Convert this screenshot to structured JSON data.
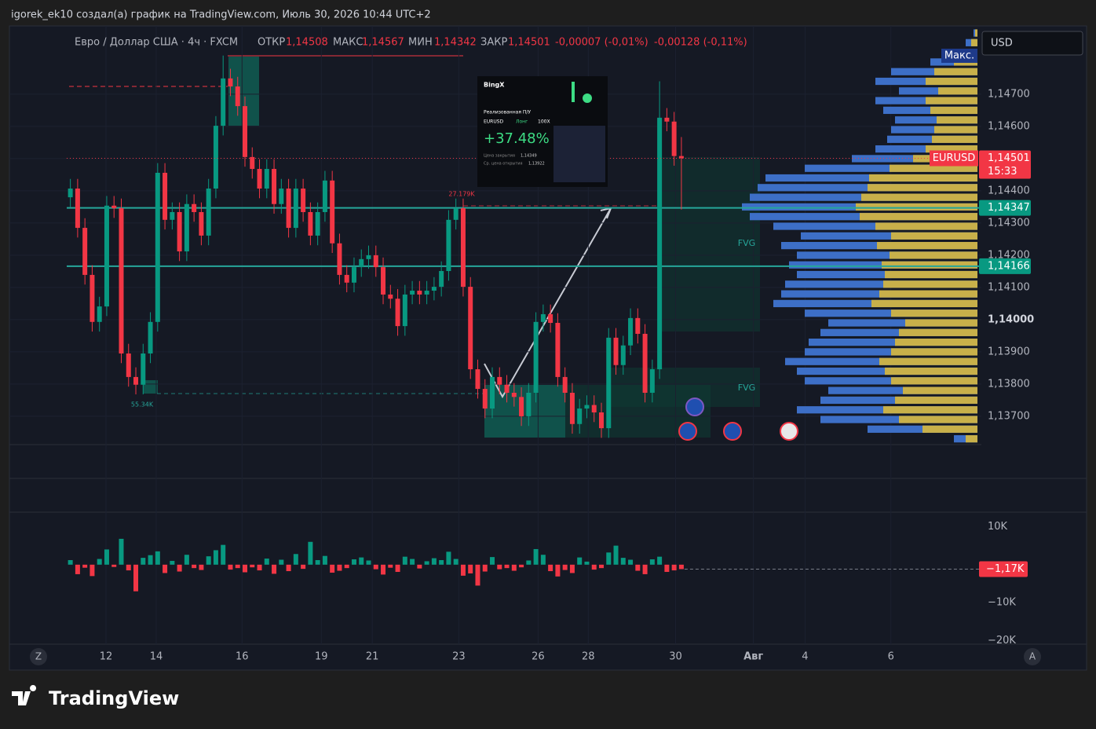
{
  "header": {
    "caption": "igorek_ek10 создал(а) график на TradingView.com, Июль 30, 2026 10:44 UTC+2",
    "currency": "USD",
    "logo": "TradingView",
    "scroll_left": "Z",
    "scroll_right": "A"
  },
  "legend": {
    "symbol": "Евро / Доллар США · 4ч · FXCM",
    "open_label": "ОТКР",
    "open": "1,14508",
    "high_label": "МАКС",
    "high": "1,14567",
    "low_label": "МИН",
    "low": "1,14342",
    "close_label": "ЗАКР",
    "close": "1,14501",
    "change": "-0,00007 (-0,01%)",
    "change2": "-0,00128 (-0,11%)"
  },
  "annotations": {
    "max_badge": "Макс.",
    "fvg": [
      "FVG",
      "FVG"
    ],
    "volume_top": "27.179K",
    "volume_bottom": "55.34K"
  },
  "ad": {
    "brand": "BingX",
    "title": "Реализованная П/У",
    "pair": "EURUSD",
    "side": "Лонг",
    "leverage": "100X",
    "pnl": "+37.48%",
    "close_label": "Цена закрытия",
    "close": "1,14349",
    "open_label": "Ср. цена открытия",
    "open": "1,13922"
  },
  "chart_data": [
    {
      "type": "candlestick",
      "name": "EURUSD",
      "up_color": "#089981",
      "down_color": "#f23645",
      "grid": true,
      "open": [
        1.1438,
        1.14407,
        1.14285,
        1.14139,
        1.13993,
        1.14041,
        1.14354,
        1.14346,
        1.13895,
        1.13822,
        1.13798,
        1.13895,
        1.13993,
        1.14456,
        1.1431,
        1.14334,
        1.14212,
        1.14359,
        1.14334,
        1.14261,
        1.14407,
        1.14602,
        1.14749,
        1.14724,
        1.14663,
        1.14505,
        1.14468,
        1.14407,
        1.14468,
        1.14359,
        1.14407,
        1.14285,
        1.14407,
        1.14334,
        1.14261,
        1.14334,
        1.14432,
        1.14237,
        1.14139,
        1.14115,
        1.14163,
        1.14188,
        1.142,
        1.14163,
        1.14078,
        1.14065,
        1.1398,
        1.14078,
        1.1409,
        1.14078,
        1.1409,
        1.14102,
        1.14151,
        1.1431,
        1.14346,
        1.14102,
        1.13846,
        1.13785,
        1.13724,
        1.13822,
        1.13798,
        1.13773,
        1.1376,
        1.137,
        1.13773,
        1.13993,
        1.14017,
        1.1399,
        1.13822,
        1.13773,
        1.13676,
        1.13724,
        1.13735,
        1.13712,
        1.13663,
        1.13944,
        1.13859,
        1.1392,
        1.14005,
        1.13956,
        1.13773,
        1.13846,
        1.14627,
        1.14615,
        1.14508
      ],
      "high": [
        1.14437,
        1.14437,
        1.14315,
        1.14169,
        1.14071,
        1.14384,
        1.14384,
        1.14376,
        1.13925,
        1.13852,
        1.13925,
        1.14023,
        1.14486,
        1.14486,
        1.14364,
        1.14364,
        1.14389,
        1.14389,
        1.14364,
        1.14437,
        1.14632,
        1.1482,
        1.14779,
        1.14754,
        1.14693,
        1.14535,
        1.14498,
        1.14498,
        1.14498,
        1.14437,
        1.14437,
        1.14437,
        1.14437,
        1.14364,
        1.14364,
        1.14462,
        1.14462,
        1.14267,
        1.14169,
        1.14193,
        1.14218,
        1.1423,
        1.1423,
        1.14193,
        1.14108,
        1.14095,
        1.14108,
        1.1412,
        1.1412,
        1.1412,
        1.14132,
        1.14181,
        1.1434,
        1.14376,
        1.14376,
        1.14132,
        1.13876,
        1.13815,
        1.13852,
        1.13852,
        1.13828,
        1.13803,
        1.1379,
        1.13803,
        1.14023,
        1.14047,
        1.14047,
        1.1402,
        1.13852,
        1.13803,
        1.13754,
        1.13765,
        1.13765,
        1.13742,
        1.13974,
        1.13974,
        1.1395,
        1.14035,
        1.14035,
        1.13986,
        1.13876,
        1.1474,
        1.14657,
        1.14645,
        1.14567
      ],
      "low": [
        1.1435,
        1.14255,
        1.14109,
        1.13963,
        1.13963,
        1.14011,
        1.14316,
        1.13865,
        1.13792,
        1.13768,
        1.13768,
        1.13865,
        1.13963,
        1.1428,
        1.1428,
        1.14182,
        1.14182,
        1.14304,
        1.14231,
        1.14231,
        1.14377,
        1.14572,
        1.14694,
        1.14633,
        1.14475,
        1.14438,
        1.14377,
        1.14377,
        1.14329,
        1.14329,
        1.14255,
        1.14255,
        1.14304,
        1.14231,
        1.14231,
        1.14304,
        1.14207,
        1.14109,
        1.14085,
        1.14085,
        1.14133,
        1.14158,
        1.14133,
        1.14048,
        1.14035,
        1.1395,
        1.1395,
        1.14048,
        1.14048,
        1.14048,
        1.1406,
        1.14072,
        1.14121,
        1.1428,
        1.14072,
        1.13816,
        1.13755,
        1.13694,
        1.13694,
        1.13768,
        1.13743,
        1.1373,
        1.1367,
        1.1367,
        1.13743,
        1.13963,
        1.1396,
        1.13792,
        1.13743,
        1.13646,
        1.13646,
        1.13694,
        1.13682,
        1.13633,
        1.13633,
        1.13829,
        1.13829,
        1.1389,
        1.13926,
        1.13743,
        1.13743,
        1.13816,
        1.14585,
        1.14478,
        1.14342
      ],
      "close": [
        1.14407,
        1.14285,
        1.14139,
        1.13993,
        1.14041,
        1.14354,
        1.14346,
        1.13895,
        1.13822,
        1.13798,
        1.13895,
        1.13993,
        1.14456,
        1.1431,
        1.14334,
        1.14212,
        1.14359,
        1.14334,
        1.14261,
        1.14407,
        1.14602,
        1.14749,
        1.14724,
        1.14663,
        1.14505,
        1.14468,
        1.14407,
        1.14468,
        1.14359,
        1.14407,
        1.14285,
        1.14407,
        1.14334,
        1.14261,
        1.14334,
        1.14432,
        1.14237,
        1.14139,
        1.14115,
        1.14163,
        1.14188,
        1.142,
        1.14163,
        1.14078,
        1.14065,
        1.1398,
        1.14078,
        1.1409,
        1.14078,
        1.1409,
        1.14102,
        1.14151,
        1.1431,
        1.14346,
        1.14102,
        1.13846,
        1.13785,
        1.13724,
        1.13822,
        1.13798,
        1.13773,
        1.1376,
        1.137,
        1.13773,
        1.13993,
        1.14017,
        1.1399,
        1.13822,
        1.13773,
        1.13676,
        1.13724,
        1.13735,
        1.13712,
        1.13663,
        1.13944,
        1.13859,
        1.1392,
        1.14005,
        1.13956,
        1.13773,
        1.13846,
        1.14627,
        1.14615,
        1.14508,
        1.14501
      ],
      "price_label": "1,14501",
      "timer": "15:33",
      "ylim": [
        1.13612,
        1.14912
      ],
      "yticks": [
        {
          "value": 1.137,
          "label": "1,13700"
        },
        {
          "value": 1.138,
          "label": "1,13800"
        },
        {
          "value": 1.139,
          "label": "1,13900"
        },
        {
          "value": 1.14,
          "label": "1,14000"
        },
        {
          "value": 1.141,
          "label": "1,14100"
        },
        {
          "value": 1.142,
          "label": "1,14200"
        },
        {
          "value": 1.143,
          "label": "1,14300"
        },
        {
          "value": 1.144,
          "label": "1,14400"
        },
        {
          "value": 1.145,
          "label": "1,14500"
        },
        {
          "value": 1.146,
          "label": "1,14600"
        },
        {
          "value": 1.147,
          "label": "1,14700"
        }
      ],
      "xlim": [
        -0.5,
        124.7
      ],
      "xticks": [
        {
          "value": 4.9,
          "label": "12"
        },
        {
          "value": 11.8,
          "label": "14"
        },
        {
          "value": 23.6,
          "label": "16"
        },
        {
          "value": 34.5,
          "label": "19"
        },
        {
          "value": 41.5,
          "label": "21"
        },
        {
          "value": 53.4,
          "label": "23"
        },
        {
          "value": 64.3,
          "label": "26"
        },
        {
          "value": 71.2,
          "label": "28"
        },
        {
          "value": 83.2,
          "label": "30"
        },
        {
          "value": 93.9,
          "label": "Авг"
        },
        {
          "value": 101,
          "label": "4"
        },
        {
          "value": 112.8,
          "label": "6"
        }
      ],
      "levels": [
        {
          "value": 1.14347,
          "label": "1,14347"
        },
        {
          "value": 1.14166,
          "label": "1,14166"
        }
      ],
      "volume_profile": {
        "color": "#3d6fc7",
        "buy_color": "#c8b04a",
        "prices": [
          1.1363,
          1.1366,
          1.1369,
          1.1372,
          1.1375,
          1.1378,
          1.1381,
          1.1384,
          1.1387,
          1.139,
          1.1393,
          1.1396,
          1.1399,
          1.1402,
          1.1405,
          1.1408,
          1.1411,
          1.1414,
          1.1417,
          1.142,
          1.1423,
          1.1426,
          1.1429,
          1.1432,
          1.1435,
          1.1438,
          1.1441,
          1.1444,
          1.1447,
          1.145,
          1.1453,
          1.1456,
          1.1459,
          1.1462,
          1.1465,
          1.1468,
          1.1471,
          1.1474,
          1.1477,
          1.148,
          1.1483,
          1.1486,
          1.1489
        ],
        "values": [
          30,
          140,
          200,
          230,
          200,
          190,
          220,
          230,
          245,
          220,
          215,
          200,
          190,
          220,
          260,
          250,
          245,
          230,
          240,
          230,
          250,
          225,
          260,
          290,
          300,
          290,
          280,
          270,
          220,
          160,
          130,
          115,
          110,
          105,
          120,
          130,
          100,
          130,
          110,
          60,
          30,
          15,
          5
        ],
        "buy": [
          15,
          70,
          100,
          120,
          105,
          95,
          110,
          118,
          125,
          110,
          105,
          100,
          92,
          110,
          135,
          125,
          120,
          118,
          122,
          112,
          128,
          110,
          130,
          150,
          155,
          148,
          140,
          138,
          112,
          82,
          66,
          58,
          55,
          52,
          60,
          66,
          50,
          66,
          55,
          30,
          15,
          8,
          3
        ]
      }
    },
    {
      "type": "bar",
      "name": "delta",
      "up_color": "#089981",
      "down_color": "#f23645",
      "values": [
        1200,
        -2500,
        -800,
        -3000,
        1500,
        4000,
        -600,
        6800,
        -1500,
        -7000,
        1800,
        2500,
        3500,
        -2200,
        1000,
        -1800,
        2600,
        -900,
        -1400,
        2200,
        3800,
        5200,
        -1300,
        -900,
        -2000,
        -700,
        -1500,
        1600,
        -2400,
        1300,
        -1700,
        2800,
        -1100,
        6000,
        1200,
        2300,
        -2100,
        -1600,
        -900,
        1400,
        1900,
        1100,
        -1200,
        -2600,
        -800,
        -1900,
        2100,
        1500,
        -1000,
        900,
        1700,
        1200,
        3400,
        1500,
        -2900,
        -2300,
        -5500,
        -1800,
        2000,
        -1200,
        -900,
        -1600,
        -700,
        1100,
        4100,
        2600,
        -1700,
        -3100,
        -1400,
        -2200,
        1900,
        800,
        -1300,
        -900,
        3200,
        5000,
        1800,
        1300,
        -1600,
        -2500,
        1400,
        2100,
        -1900,
        -1500,
        -1170
      ],
      "last_value_label": "−1,17K",
      "ylim": [
        -20900,
        13800
      ],
      "yticks": [
        {
          "value": 10000,
          "label": "10K"
        },
        {
          "value": -10000,
          "label": "−10K"
        },
        {
          "value": -20000,
          "label": "−20K"
        }
      ]
    }
  ]
}
